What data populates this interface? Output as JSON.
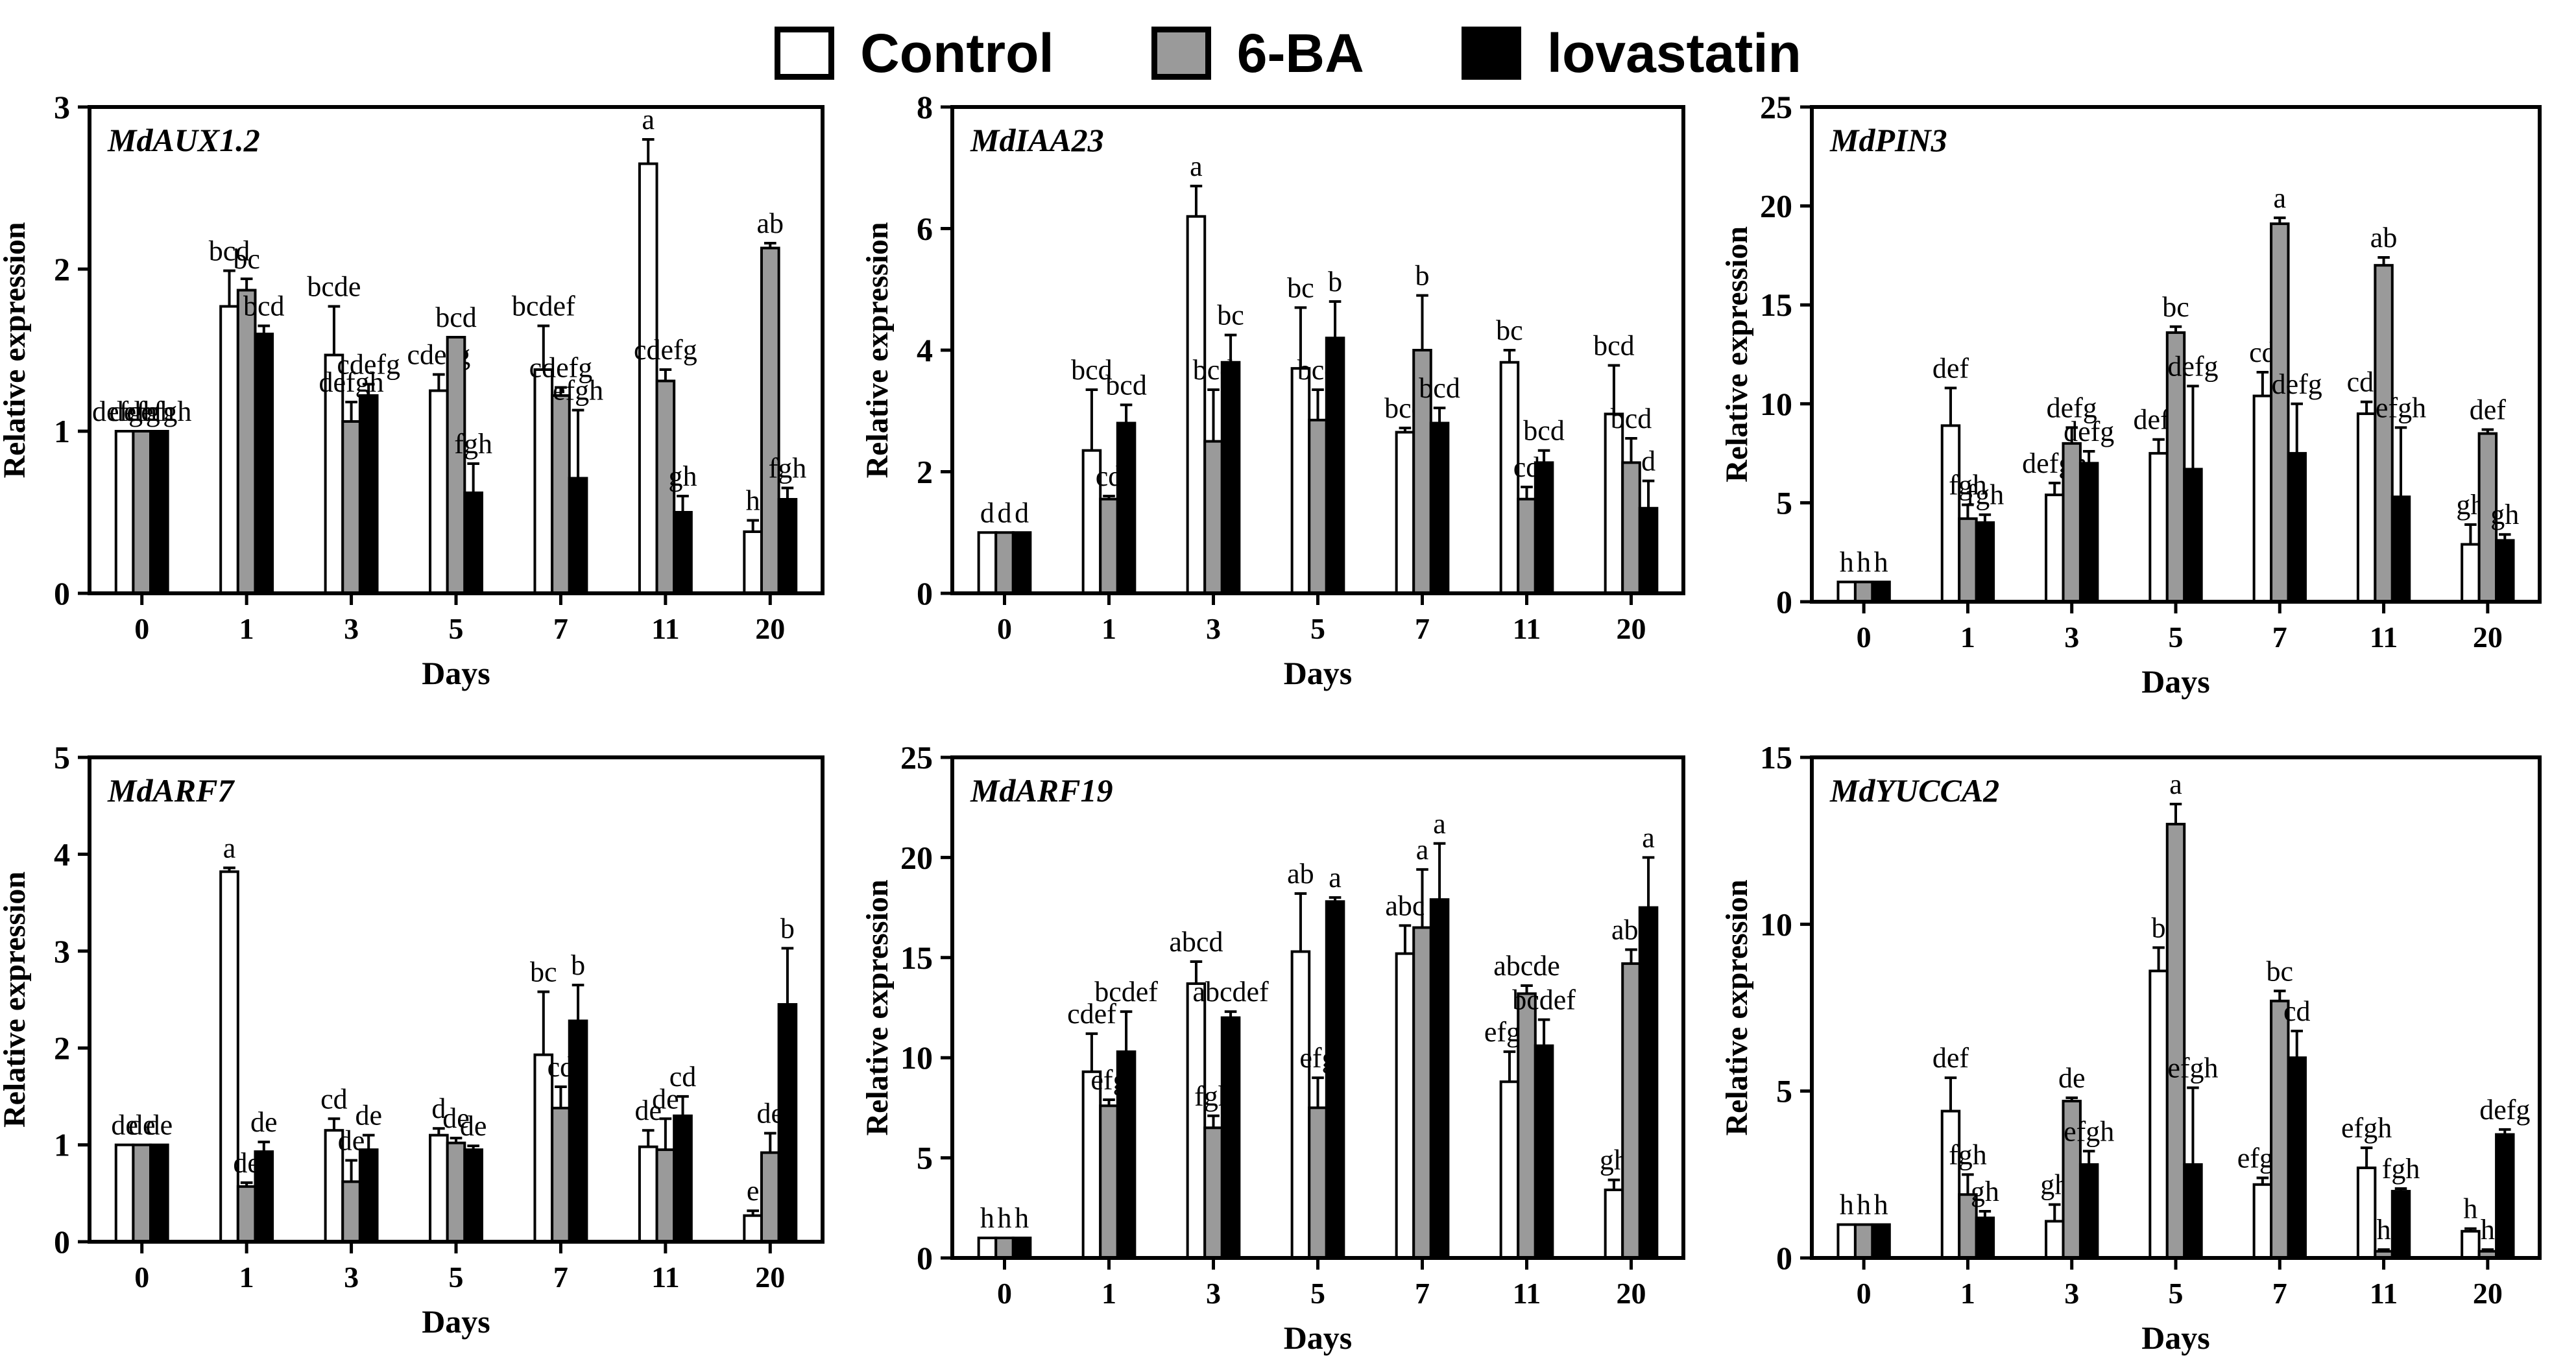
{
  "legend": [
    {
      "label": "Control",
      "color": "#ffffff"
    },
    {
      "label": "6-BA",
      "color": "#9a9a9a"
    },
    {
      "label": "lovastatin",
      "color": "#000000"
    }
  ],
  "chart_data": [
    {
      "type": "bar",
      "title": "MdAUX1.2",
      "xlabel": "Days",
      "ylabel": "Relative expression",
      "categories": [
        "0",
        "1",
        "3",
        "5",
        "7",
        "11",
        "20"
      ],
      "ylim": [
        0,
        3
      ],
      "yticks": [
        "0",
        "1",
        "2",
        "3"
      ],
      "series": [
        {
          "name": "Control",
          "values": [
            1.0,
            1.77,
            1.47,
            1.25,
            1.38,
            2.65,
            0.38
          ],
          "errors": [
            0,
            0.22,
            0.3,
            0.1,
            0.27,
            0.15,
            0.07
          ],
          "letters": [
            "defgh",
            "bcd",
            "bcde",
            "cdefg",
            "bcdef",
            "a",
            "h"
          ]
        },
        {
          "name": "6-BA",
          "values": [
            1.0,
            1.87,
            1.06,
            1.58,
            1.22,
            1.31,
            2.13
          ],
          "errors": [
            0,
            0.07,
            0.12,
            0,
            0.05,
            0.07,
            0.03
          ],
          "letters": [
            "defgh",
            "bc",
            "defgh",
            "bcd",
            "cdefg",
            "cdefg",
            "ab"
          ]
        },
        {
          "name": "lovastatin",
          "values": [
            1.0,
            1.6,
            1.22,
            0.62,
            0.71,
            0.5,
            0.58
          ],
          "errors": [
            0,
            0.05,
            0.07,
            0.18,
            0.42,
            0.1,
            0.07
          ],
          "letters": [
            "defgh",
            "bcd",
            "cdefg",
            "fgh",
            "efgh",
            "gh",
            "fgh"
          ]
        }
      ]
    },
    {
      "type": "bar",
      "title": "MdIAA23",
      "xlabel": "Days",
      "ylabel": "Relative expression",
      "categories": [
        "0",
        "1",
        "3",
        "5",
        "7",
        "11",
        "20"
      ],
      "ylim": [
        0,
        8
      ],
      "yticks": [
        "0",
        "2",
        "4",
        "6",
        "8"
      ],
      "series": [
        {
          "name": "Control",
          "values": [
            1.0,
            2.35,
            6.2,
            3.7,
            2.65,
            3.8,
            2.95
          ],
          "errors": [
            0,
            1.0,
            0.5,
            1.0,
            0.07,
            0.2,
            0.8
          ],
          "letters": [
            "d",
            "bcd",
            "a",
            "bc",
            "bcd",
            "bc",
            "bcd"
          ]
        },
        {
          "name": "6-BA",
          "values": [
            1.0,
            1.55,
            2.5,
            2.85,
            4.0,
            1.55,
            2.15
          ],
          "errors": [
            0,
            0.05,
            0.85,
            0.5,
            0.9,
            0.2,
            0.4
          ],
          "letters": [
            "d",
            "cd",
            "bcd",
            "bcd",
            "b",
            "cd",
            "bcd"
          ]
        },
        {
          "name": "lovastatin",
          "values": [
            1.0,
            2.8,
            3.8,
            4.2,
            2.8,
            2.15,
            1.4
          ],
          "errors": [
            0,
            0.3,
            0.45,
            0.6,
            0.25,
            0.2,
            0.45
          ],
          "letters": [
            "d",
            "bcd",
            "bc",
            "b",
            "bcd",
            "bcd",
            "d"
          ]
        }
      ]
    },
    {
      "type": "bar",
      "title": "MdPIN3",
      "xlabel": "Days",
      "ylabel": "Relative expression",
      "categories": [
        "0",
        "1",
        "3",
        "5",
        "7",
        "11",
        "20"
      ],
      "ylim": [
        0,
        25
      ],
      "yticks": [
        "0",
        "5",
        "10",
        "15",
        "20",
        "25"
      ],
      "series": [
        {
          "name": "Control",
          "values": [
            1.0,
            8.9,
            5.4,
            7.5,
            10.4,
            9.5,
            2.9
          ],
          "errors": [
            0,
            1.9,
            0.6,
            0.7,
            1.2,
            0.6,
            1.0
          ],
          "letters": [
            "h",
            "def",
            "defgh",
            "defg",
            "cd",
            "cde",
            "gh"
          ]
        },
        {
          "name": "6-BA",
          "values": [
            1.0,
            4.2,
            8.0,
            13.6,
            19.1,
            17.0,
            8.5
          ],
          "errors": [
            0,
            0.7,
            0.8,
            0.3,
            0.3,
            0.4,
            0.2
          ],
          "letters": [
            "h",
            "fgh",
            "defg",
            "bc",
            "a",
            "ab",
            "def"
          ]
        },
        {
          "name": "lovastatin",
          "values": [
            1.0,
            4.0,
            7.0,
            6.7,
            7.5,
            5.3,
            3.1
          ],
          "errors": [
            0,
            0.4,
            0.6,
            4.2,
            2.5,
            3.5,
            0.3
          ],
          "letters": [
            "h",
            "fgh",
            "defg",
            "defg",
            "defg",
            "efgh",
            "gh"
          ]
        }
      ]
    },
    {
      "type": "bar",
      "title": "MdARF7",
      "xlabel": "Days",
      "ylabel": "Relative expression",
      "categories": [
        "0",
        "1",
        "3",
        "5",
        "7",
        "11",
        "20"
      ],
      "ylim": [
        0,
        5
      ],
      "yticks": [
        "0",
        "1",
        "2",
        "3",
        "4",
        "5"
      ],
      "series": [
        {
          "name": "Control",
          "values": [
            1.0,
            3.82,
            1.15,
            1.1,
            1.93,
            0.98,
            0.27
          ],
          "errors": [
            0,
            0.04,
            0.12,
            0.07,
            0.65,
            0.17,
            0.05
          ],
          "letters": [
            "de",
            "a",
            "cd",
            "d",
            "bc",
            "de",
            "e"
          ]
        },
        {
          "name": "6-BA",
          "values": [
            1.0,
            0.57,
            0.62,
            1.02,
            1.38,
            0.95,
            0.92
          ],
          "errors": [
            0,
            0.04,
            0.22,
            0.05,
            0.22,
            0.32,
            0.2
          ],
          "letters": [
            "de",
            "de",
            "de",
            "de",
            "cd",
            "de",
            "de"
          ]
        },
        {
          "name": "lovastatin",
          "values": [
            1.0,
            0.93,
            0.95,
            0.95,
            2.28,
            1.3,
            2.45
          ],
          "errors": [
            0,
            0.1,
            0.15,
            0.04,
            0.37,
            0.2,
            0.58
          ],
          "letters": [
            "de",
            "de",
            "de",
            "de",
            "b",
            "cd",
            "b"
          ]
        }
      ]
    },
    {
      "type": "bar",
      "title": "MdARF19",
      "xlabel": "Days",
      "ylabel": "Relative expression",
      "categories": [
        "0",
        "1",
        "3",
        "5",
        "7",
        "11",
        "20"
      ],
      "ylim": [
        0,
        25
      ],
      "yticks": [
        "0",
        "5",
        "10",
        "15",
        "20",
        "25"
      ],
      "series": [
        {
          "name": "Control",
          "values": [
            1.0,
            9.3,
            13.7,
            15.3,
            15.2,
            8.8,
            3.4
          ],
          "errors": [
            0,
            1.9,
            1.1,
            2.9,
            1.4,
            1.5,
            0.5
          ],
          "letters": [
            "h",
            "cdef",
            "abcd",
            "ab",
            "abc",
            "efgh",
            "gh"
          ]
        },
        {
          "name": "6-BA",
          "values": [
            1.0,
            7.6,
            6.5,
            7.5,
            16.5,
            13.2,
            14.7
          ],
          "errors": [
            0,
            0.3,
            0.6,
            1.5,
            2.9,
            0.4,
            0.7
          ],
          "letters": [
            "h",
            "efg",
            "fgh",
            "efg",
            "a",
            "abcde",
            "abc"
          ]
        },
        {
          "name": "lovastatin",
          "values": [
            1.0,
            10.3,
            12.0,
            17.8,
            17.9,
            10.6,
            17.5
          ],
          "errors": [
            0,
            2.0,
            0.3,
            0.2,
            2.8,
            1.3,
            2.5
          ],
          "letters": [
            "h",
            "bcdef",
            "abcdef",
            "a",
            "a",
            "bcdef",
            "a"
          ]
        }
      ]
    },
    {
      "type": "bar",
      "title": "MdYUCCA2",
      "xlabel": "Days",
      "ylabel": "Relative expression",
      "categories": [
        "0",
        "1",
        "3",
        "5",
        "7",
        "11",
        "20"
      ],
      "ylim": [
        0,
        15
      ],
      "yticks": [
        "0",
        "5",
        "10",
        "15"
      ],
      "series": [
        {
          "name": "Control",
          "values": [
            1.0,
            4.4,
            1.1,
            8.6,
            2.2,
            2.7,
            0.8
          ],
          "errors": [
            0,
            1.0,
            0.5,
            0.7,
            0.2,
            0.6,
            0.08
          ],
          "letters": [
            "h",
            "def",
            "gh",
            "b",
            "efgh",
            "efgh",
            "h"
          ]
        },
        {
          "name": "6-BA",
          "values": [
            1.0,
            1.9,
            4.7,
            13.0,
            7.7,
            0.2,
            0.2
          ],
          "errors": [
            0,
            0.6,
            0.1,
            0.6,
            0.3,
            0.05,
            0.05
          ],
          "letters": [
            "h",
            "fgh",
            "de",
            "a",
            "bc",
            "h",
            "h"
          ]
        },
        {
          "name": "lovastatin",
          "values": [
            1.0,
            1.2,
            2.8,
            2.8,
            6.0,
            2.0,
            3.7
          ],
          "errors": [
            0,
            0.2,
            0.4,
            2.3,
            0.8,
            0.08,
            0.15
          ],
          "letters": [
            "h",
            "gh",
            "efgh",
            "efgh",
            "cd",
            "fgh",
            "defg"
          ]
        }
      ]
    }
  ]
}
